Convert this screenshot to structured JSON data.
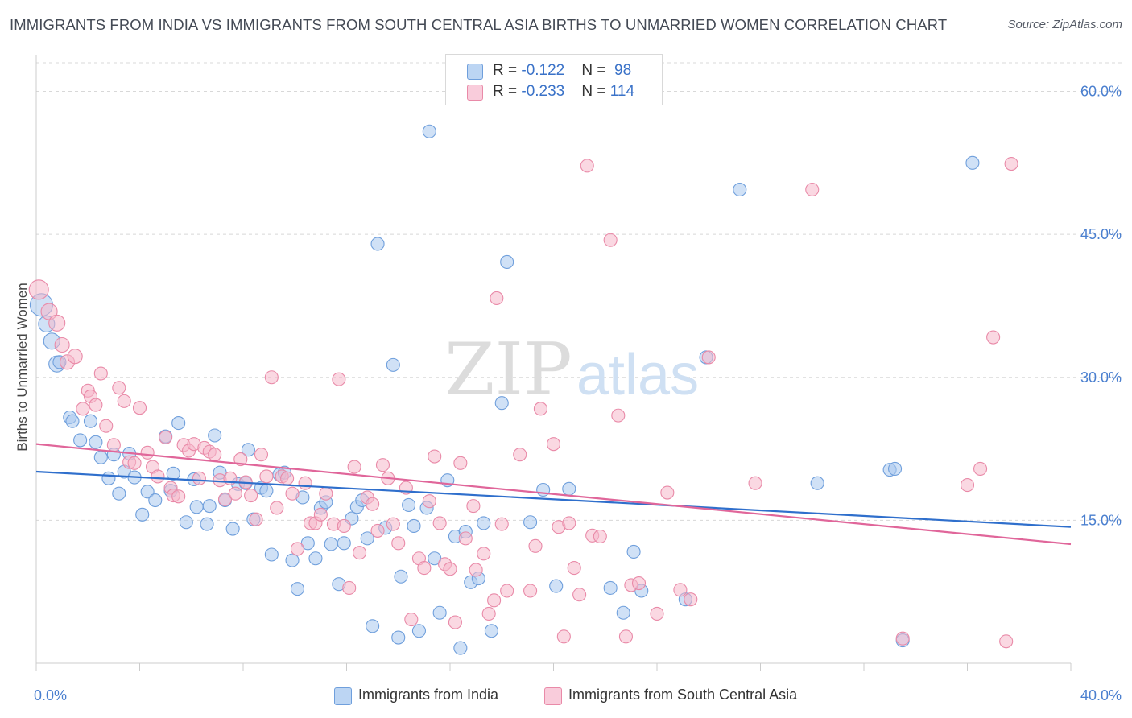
{
  "title": "IMMIGRANTS FROM INDIA VS IMMIGRANTS FROM SOUTH CENTRAL ASIA BIRTHS TO UNMARRIED WOMEN CORRELATION CHART",
  "source": "Source: ZipAtlas.com",
  "watermark": {
    "zip": "ZIP",
    "atlas": "atlas"
  },
  "legend": {
    "india": {
      "r_label": "R = ",
      "r_value": "-0.122",
      "n_label": "N = ",
      "n_value": "98"
    },
    "sca": {
      "r_label": "R = ",
      "r_value": "-0.233",
      "n_label": "N = ",
      "n_value": "114"
    }
  },
  "colors": {
    "india_fill": "#a9c8ef",
    "india_stroke": "#6f9fdc",
    "india_line": "#2f6fcc",
    "sca_fill": "#f6b8cb",
    "sca_stroke": "#e98aa8",
    "sca_line": "#e0669a",
    "tick_text": "#4a7fcf",
    "grid": "#d8d8d8"
  },
  "chart_data": {
    "type": "scatter",
    "title": "IMMIGRANTS FROM INDIA VS IMMIGRANTS FROM SOUTH CENTRAL ASIA BIRTHS TO UNMARRIED WOMEN CORRELATION CHART",
    "xlabel": "",
    "ylabel": "Births to Unmarried Women",
    "xlim": [
      0,
      40
    ],
    "ylim": [
      0,
      63
    ],
    "x_tick_labels": [
      "0.0%",
      "40.0%"
    ],
    "y_ticks": [
      15,
      30,
      45,
      60
    ],
    "y_tick_labels": [
      "15.0%",
      "30.0%",
      "45.0%",
      "60.0%"
    ],
    "grid": "horizontal dashed",
    "legend_position": "top-center and bottom",
    "series": [
      {
        "name": "Immigrants from India",
        "trend": {
          "x": [
            0,
            40
          ],
          "y": [
            20.1,
            14.3
          ]
        },
        "points": [
          [
            0.2,
            37.6,
            14
          ],
          [
            0.4,
            35.6,
            10
          ],
          [
            0.6,
            33.8,
            10
          ],
          [
            0.8,
            31.4,
            10
          ],
          [
            0.9,
            31.6,
            8
          ],
          [
            1.3,
            25.8,
            8
          ],
          [
            1.4,
            25.4,
            8
          ],
          [
            1.7,
            23.4,
            8
          ],
          [
            2.1,
            25.4,
            8
          ],
          [
            2.3,
            23.2,
            8
          ],
          [
            2.5,
            21.6,
            8
          ],
          [
            2.8,
            19.4,
            8
          ],
          [
            3.0,
            21.9,
            8
          ],
          [
            3.2,
            17.8,
            8
          ],
          [
            3.4,
            20.1,
            8
          ],
          [
            3.6,
            22.0,
            8
          ],
          [
            3.8,
            19.5,
            8
          ],
          [
            4.1,
            15.6,
            8
          ],
          [
            4.3,
            18.0,
            8
          ],
          [
            4.6,
            17.1,
            8
          ],
          [
            5.0,
            23.8,
            8
          ],
          [
            5.2,
            18.1,
            8
          ],
          [
            5.3,
            19.9,
            8
          ],
          [
            5.5,
            25.2,
            8
          ],
          [
            5.8,
            14.8,
            8
          ],
          [
            6.1,
            19.3,
            8
          ],
          [
            6.2,
            16.4,
            8
          ],
          [
            6.6,
            14.6,
            8
          ],
          [
            6.7,
            16.5,
            8
          ],
          [
            6.9,
            23.9,
            8
          ],
          [
            7.1,
            20.0,
            8
          ],
          [
            7.3,
            17.1,
            8
          ],
          [
            7.6,
            14.1,
            8
          ],
          [
            7.8,
            18.8,
            8
          ],
          [
            8.1,
            18.9,
            8
          ],
          [
            8.2,
            22.4,
            8
          ],
          [
            8.4,
            15.1,
            8
          ],
          [
            8.7,
            18.4,
            8
          ],
          [
            8.9,
            18.1,
            8
          ],
          [
            9.1,
            11.4,
            8
          ],
          [
            9.4,
            19.8,
            8
          ],
          [
            9.6,
            20.0,
            8
          ],
          [
            9.9,
            10.8,
            8
          ],
          [
            10.1,
            7.8,
            8
          ],
          [
            10.3,
            17.4,
            8
          ],
          [
            10.5,
            12.6,
            8
          ],
          [
            10.8,
            11.0,
            8
          ],
          [
            11.0,
            16.3,
            8
          ],
          [
            11.2,
            16.9,
            8
          ],
          [
            11.4,
            12.5,
            8
          ],
          [
            11.7,
            8.3,
            8
          ],
          [
            11.9,
            12.6,
            8
          ],
          [
            12.2,
            15.2,
            8
          ],
          [
            12.4,
            16.4,
            8
          ],
          [
            12.6,
            17.1,
            8
          ],
          [
            12.8,
            13.1,
            8
          ],
          [
            13.0,
            3.9,
            8
          ],
          [
            13.2,
            44.0,
            8
          ],
          [
            13.5,
            14.2,
            8
          ],
          [
            13.8,
            31.3,
            8
          ],
          [
            14.0,
            2.7,
            8
          ],
          [
            14.1,
            9.1,
            8
          ],
          [
            14.4,
            16.6,
            8
          ],
          [
            14.6,
            14.4,
            8
          ],
          [
            14.8,
            3.4,
            8
          ],
          [
            15.1,
            16.3,
            8
          ],
          [
            15.2,
            55.8,
            8
          ],
          [
            15.4,
            11.0,
            8
          ],
          [
            15.6,
            5.3,
            8
          ],
          [
            15.9,
            19.2,
            8
          ],
          [
            16.2,
            13.3,
            8
          ],
          [
            16.4,
            1.6,
            8
          ],
          [
            16.6,
            13.8,
            8
          ],
          [
            16.8,
            8.5,
            8
          ],
          [
            17.1,
            8.9,
            8
          ],
          [
            17.3,
            14.7,
            8
          ],
          [
            17.6,
            3.4,
            8
          ],
          [
            18.0,
            27.3,
            8
          ],
          [
            18.2,
            42.1,
            8
          ],
          [
            19.1,
            14.8,
            8
          ],
          [
            19.6,
            18.2,
            8
          ],
          [
            20.1,
            8.1,
            8
          ],
          [
            20.6,
            18.3,
            8
          ],
          [
            22.2,
            7.9,
            8
          ],
          [
            22.7,
            5.3,
            8
          ],
          [
            23.1,
            11.7,
            8
          ],
          [
            23.4,
            7.6,
            8
          ],
          [
            25.1,
            6.7,
            8
          ],
          [
            25.9,
            32.1,
            8
          ],
          [
            27.2,
            49.7,
            8
          ],
          [
            30.2,
            18.9,
            8
          ],
          [
            33.0,
            20.3,
            8
          ],
          [
            33.2,
            20.4,
            8
          ],
          [
            33.5,
            2.4,
            8
          ],
          [
            36.2,
            52.5,
            8
          ]
        ]
      },
      {
        "name": "Immigrants from South Central Asia",
        "trend": {
          "x": [
            0,
            40
          ],
          "y": [
            23.0,
            12.5
          ]
        },
        "points": [
          [
            0.1,
            39.2,
            12
          ],
          [
            0.5,
            36.9,
            10
          ],
          [
            0.8,
            35.7,
            10
          ],
          [
            1.0,
            33.4,
            9
          ],
          [
            1.2,
            31.6,
            9
          ],
          [
            1.5,
            32.2,
            9
          ],
          [
            1.8,
            26.7,
            8
          ],
          [
            2.0,
            28.6,
            8
          ],
          [
            2.1,
            28.0,
            8
          ],
          [
            2.3,
            27.1,
            8
          ],
          [
            2.5,
            30.4,
            8
          ],
          [
            2.7,
            24.9,
            8
          ],
          [
            3.0,
            22.9,
            8
          ],
          [
            3.2,
            28.9,
            8
          ],
          [
            3.4,
            27.5,
            8
          ],
          [
            3.6,
            21.1,
            8
          ],
          [
            3.8,
            21.0,
            8
          ],
          [
            4.0,
            26.8,
            8
          ],
          [
            4.3,
            22.1,
            8
          ],
          [
            4.5,
            20.6,
            8
          ],
          [
            4.7,
            19.6,
            8
          ],
          [
            5.0,
            23.7,
            8
          ],
          [
            5.2,
            18.4,
            8
          ],
          [
            5.3,
            17.6,
            8
          ],
          [
            5.5,
            17.5,
            8
          ],
          [
            5.7,
            22.9,
            8
          ],
          [
            5.9,
            22.3,
            8
          ],
          [
            6.1,
            23.0,
            8
          ],
          [
            6.3,
            19.4,
            8
          ],
          [
            6.5,
            22.6,
            8
          ],
          [
            6.7,
            22.2,
            8
          ],
          [
            6.9,
            21.9,
            8
          ],
          [
            7.1,
            19.2,
            8
          ],
          [
            7.3,
            17.2,
            8
          ],
          [
            7.5,
            19.4,
            8
          ],
          [
            7.7,
            17.8,
            8
          ],
          [
            7.9,
            21.4,
            8
          ],
          [
            8.1,
            19.0,
            8
          ],
          [
            8.3,
            17.6,
            8
          ],
          [
            8.5,
            15.1,
            8
          ],
          [
            8.7,
            21.9,
            8
          ],
          [
            8.9,
            19.6,
            8
          ],
          [
            9.1,
            30.0,
            8
          ],
          [
            9.3,
            16.3,
            8
          ],
          [
            9.5,
            19.6,
            8
          ],
          [
            9.7,
            19.4,
            8
          ],
          [
            9.9,
            17.8,
            8
          ],
          [
            10.1,
            12.0,
            8
          ],
          [
            10.4,
            18.9,
            8
          ],
          [
            10.6,
            14.7,
            8
          ],
          [
            10.8,
            14.7,
            8
          ],
          [
            11.0,
            15.6,
            8
          ],
          [
            11.2,
            17.8,
            8
          ],
          [
            11.5,
            14.6,
            8
          ],
          [
            11.7,
            29.8,
            8
          ],
          [
            11.9,
            14.4,
            8
          ],
          [
            12.1,
            7.9,
            8
          ],
          [
            12.3,
            20.6,
            8
          ],
          [
            12.5,
            11.6,
            8
          ],
          [
            12.8,
            17.4,
            8
          ],
          [
            13.0,
            16.7,
            8
          ],
          [
            13.2,
            13.9,
            8
          ],
          [
            13.4,
            20.8,
            8
          ],
          [
            13.6,
            19.4,
            8
          ],
          [
            13.8,
            14.6,
            8
          ],
          [
            14.0,
            12.6,
            8
          ],
          [
            14.3,
            18.4,
            8
          ],
          [
            14.5,
            4.6,
            8
          ],
          [
            14.8,
            11.0,
            8
          ],
          [
            15.0,
            10.0,
            8
          ],
          [
            15.2,
            17.0,
            8
          ],
          [
            15.4,
            21.7,
            8
          ],
          [
            15.6,
            14.7,
            8
          ],
          [
            15.8,
            10.4,
            8
          ],
          [
            16.0,
            9.9,
            8
          ],
          [
            16.2,
            4.3,
            8
          ],
          [
            16.4,
            21.0,
            8
          ],
          [
            16.6,
            13.1,
            8
          ],
          [
            16.9,
            16.5,
            8
          ],
          [
            17.0,
            9.8,
            8
          ],
          [
            17.3,
            11.5,
            8
          ],
          [
            17.5,
            5.2,
            8
          ],
          [
            17.7,
            6.6,
            8
          ],
          [
            17.8,
            38.3,
            8
          ],
          [
            18.0,
            14.6,
            8
          ],
          [
            18.2,
            7.6,
            8
          ],
          [
            18.7,
            21.9,
            8
          ],
          [
            19.1,
            7.6,
            8
          ],
          [
            19.3,
            12.3,
            8
          ],
          [
            19.5,
            26.7,
            8
          ],
          [
            20.0,
            23.0,
            8
          ],
          [
            20.2,
            14.3,
            8
          ],
          [
            20.4,
            2.8,
            8
          ],
          [
            20.6,
            14.7,
            8
          ],
          [
            20.8,
            10.0,
            8
          ],
          [
            21.0,
            7.2,
            8
          ],
          [
            21.3,
            52.2,
            8
          ],
          [
            21.5,
            13.4,
            8
          ],
          [
            21.8,
            13.3,
            8
          ],
          [
            22.2,
            44.4,
            8
          ],
          [
            22.5,
            26.0,
            8
          ],
          [
            22.8,
            2.8,
            8
          ],
          [
            23.0,
            8.2,
            8
          ],
          [
            23.3,
            8.4,
            8
          ],
          [
            24.0,
            5.2,
            8
          ],
          [
            24.4,
            17.9,
            8
          ],
          [
            24.9,
            7.7,
            8
          ],
          [
            25.3,
            6.7,
            8
          ],
          [
            26.0,
            32.1,
            8
          ],
          [
            27.8,
            18.9,
            8
          ],
          [
            30.0,
            49.7,
            8
          ],
          [
            33.5,
            2.6,
            8
          ],
          [
            36.0,
            18.7,
            8
          ],
          [
            36.5,
            20.4,
            8
          ],
          [
            37.0,
            34.2,
            8
          ],
          [
            37.5,
            2.3,
            8
          ],
          [
            37.7,
            52.4,
            8
          ]
        ]
      }
    ]
  },
  "bottom_legend": {
    "india_label": "Immigrants from India",
    "sca_label": "Immigrants from South Central Asia"
  }
}
